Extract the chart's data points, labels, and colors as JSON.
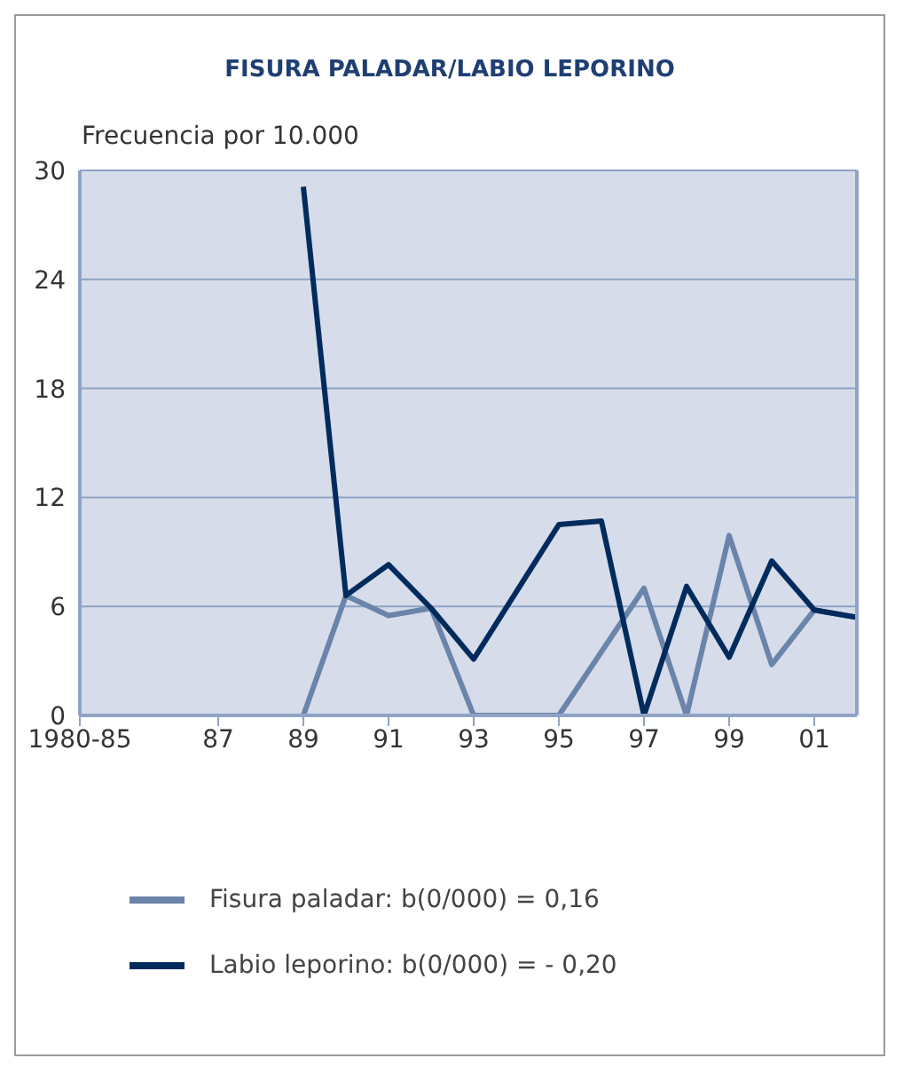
{
  "chart_data": {
    "type": "line",
    "title": "FISURA PALADAR/LABIO LEPORINO",
    "ylabel": "Frecuencia por 10.000",
    "series": [
      {
        "name": "Fisura paladar:  b(0/000) = 0,16",
        "color": "#6a84aa",
        "x": [
          1989,
          1990,
          1991,
          1992,
          1993,
          1995,
          1997,
          1998,
          1999,
          2000,
          2001,
          2002
        ],
        "values": [
          0,
          6.6,
          5.5,
          5.9,
          0,
          0,
          7.0,
          0,
          9.9,
          2.8,
          5.8,
          5.4
        ]
      },
      {
        "name": "Labio leporino:  b(0/000) = - 0,20",
        "color": "#002b5c",
        "x": [
          1989,
          1990,
          1991,
          1992,
          1993,
          1995,
          1996,
          1997,
          1998,
          1999,
          2000,
          2001,
          2002
        ],
        "values": [
          29.1,
          6.6,
          8.3,
          5.9,
          3.1,
          10.5,
          10.7,
          0,
          7.1,
          3.2,
          8.5,
          5.8,
          5.4
        ]
      }
    ],
    "xlim": [
      1983.75,
      2002
    ],
    "xticks": [
      {
        "value": 1983.75,
        "label": "1980-85"
      },
      {
        "value": 1987,
        "label": "87"
      },
      {
        "value": 1989,
        "label": "89"
      },
      {
        "value": 1991,
        "label": "91"
      },
      {
        "value": 1993,
        "label": "93"
      },
      {
        "value": 1995,
        "label": "95"
      },
      {
        "value": 1997,
        "label": "97"
      },
      {
        "value": 1999,
        "label": "99"
      },
      {
        "value": 2001,
        "label": "01"
      }
    ],
    "ylim": [
      0,
      30
    ],
    "yticks": [
      0,
      6,
      12,
      18,
      24,
      30
    ],
    "grid": "y",
    "legend": "bottom",
    "marker": "none",
    "line_style": "solid"
  }
}
